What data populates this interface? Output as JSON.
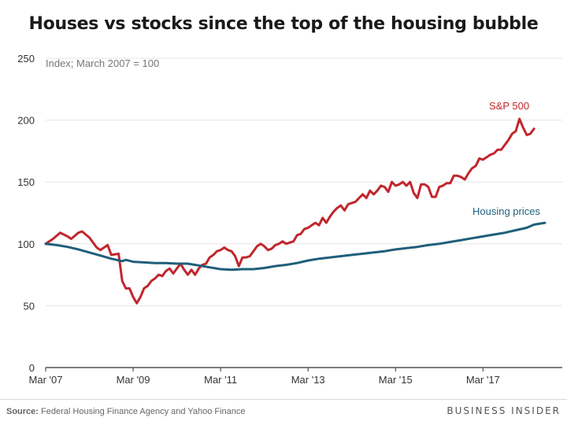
{
  "header": {
    "title": "Houses vs stocks since the top of the housing bubble"
  },
  "footer": {
    "source_label": "Source:",
    "source_text": "Federal Housing Finance Agency and Yahoo Finance",
    "brand": "BUSINESS INSIDER"
  },
  "colors": {
    "sp500": "#c0272d",
    "housing": "#1f5f7a",
    "grid": "#e6e6e6",
    "axis": "#333333"
  },
  "chart_data": {
    "type": "line",
    "subtitle": "Index; March 2007 = 100",
    "xlabel": "",
    "ylabel": "",
    "x_start": "2007-03",
    "x_end": "2018-08",
    "xticks": [
      {
        "date": "2007-03",
        "label": "Mar '07"
      },
      {
        "date": "2009-03",
        "label": "Mar '09"
      },
      {
        "date": "2011-03",
        "label": "Mar '11"
      },
      {
        "date": "2013-03",
        "label": "Mar '13"
      },
      {
        "date": "2015-03",
        "label": "Mar '15"
      },
      {
        "date": "2017-03",
        "label": "Mar '17"
      }
    ],
    "ylim": [
      0,
      250
    ],
    "yticks": [
      0,
      50,
      100,
      150,
      200,
      250
    ],
    "grid": true,
    "series": [
      {
        "name": "S&P 500",
        "color": "#c0272d",
        "points": [
          [
            "2007-03",
            100
          ],
          [
            "2007-05",
            104
          ],
          [
            "2007-07",
            109
          ],
          [
            "2007-09",
            106
          ],
          [
            "2007-10",
            104
          ],
          [
            "2007-12",
            109
          ],
          [
            "2008-01",
            110
          ],
          [
            "2008-03",
            105
          ],
          [
            "2008-05",
            97
          ],
          [
            "2008-06",
            95
          ],
          [
            "2008-08",
            99
          ],
          [
            "2008-09",
            91
          ],
          [
            "2008-11",
            92
          ],
          [
            "2008-12",
            70
          ],
          [
            "2009-01",
            64
          ],
          [
            "2009-02",
            64
          ],
          [
            "2009-03",
            57
          ],
          [
            "2009-04",
            52
          ],
          [
            "2009-05",
            57
          ],
          [
            "2009-06",
            64
          ],
          [
            "2009-07",
            66
          ],
          [
            "2009-08",
            70
          ],
          [
            "2009-09",
            72
          ],
          [
            "2009-10",
            75
          ],
          [
            "2009-11",
            74
          ],
          [
            "2009-12",
            78
          ],
          [
            "2010-01",
            80
          ],
          [
            "2010-02",
            76
          ],
          [
            "2010-03",
            80
          ],
          [
            "2010-04",
            84
          ],
          [
            "2010-05",
            79
          ],
          [
            "2010-06",
            75
          ],
          [
            "2010-07",
            79
          ],
          [
            "2010-08",
            75
          ],
          [
            "2010-09",
            80
          ],
          [
            "2010-10",
            83
          ],
          [
            "2010-11",
            84
          ],
          [
            "2010-12",
            89
          ],
          [
            "2011-01",
            91
          ],
          [
            "2011-02",
            94
          ],
          [
            "2011-03",
            95
          ],
          [
            "2011-04",
            97
          ],
          [
            "2011-05",
            95
          ],
          [
            "2011-06",
            94
          ],
          [
            "2011-07",
            90
          ],
          [
            "2011-08",
            82
          ],
          [
            "2011-09",
            89
          ],
          [
            "2011-10",
            89
          ],
          [
            "2011-11",
            90
          ],
          [
            "2011-12",
            94
          ],
          [
            "2012-01",
            98
          ],
          [
            "2012-02",
            100
          ],
          [
            "2012-03",
            98
          ],
          [
            "2012-04",
            95
          ],
          [
            "2012-05",
            96
          ],
          [
            "2012-06",
            99
          ],
          [
            "2012-07",
            100
          ],
          [
            "2012-08",
            102
          ],
          [
            "2012-09",
            100
          ],
          [
            "2012-10",
            101
          ],
          [
            "2012-11",
            102
          ],
          [
            "2012-12",
            107
          ],
          [
            "2013-01",
            108
          ],
          [
            "2013-02",
            112
          ],
          [
            "2013-03",
            113
          ],
          [
            "2013-04",
            115
          ],
          [
            "2013-05",
            117
          ],
          [
            "2013-06",
            115
          ],
          [
            "2013-07",
            121
          ],
          [
            "2013-08",
            117
          ],
          [
            "2013-09",
            122
          ],
          [
            "2013-10",
            126
          ],
          [
            "2013-11",
            129
          ],
          [
            "2013-12",
            131
          ],
          [
            "2014-01",
            127
          ],
          [
            "2014-02",
            132
          ],
          [
            "2014-03",
            133
          ],
          [
            "2014-04",
            134
          ],
          [
            "2014-05",
            137
          ],
          [
            "2014-06",
            140
          ],
          [
            "2014-07",
            137
          ],
          [
            "2014-08",
            143
          ],
          [
            "2014-09",
            140
          ],
          [
            "2014-10",
            143
          ],
          [
            "2014-11",
            147
          ],
          [
            "2014-12",
            146
          ],
          [
            "2015-01",
            142
          ],
          [
            "2015-02",
            150
          ],
          [
            "2015-03",
            147
          ],
          [
            "2015-04",
            148
          ],
          [
            "2015-05",
            150
          ],
          [
            "2015-06",
            147
          ],
          [
            "2015-07",
            150
          ],
          [
            "2015-08",
            141
          ],
          [
            "2015-09",
            137
          ],
          [
            "2015-10",
            148
          ],
          [
            "2015-11",
            148
          ],
          [
            "2015-12",
            146
          ],
          [
            "2016-01",
            138
          ],
          [
            "2016-02",
            138
          ],
          [
            "2016-03",
            146
          ],
          [
            "2016-04",
            147
          ],
          [
            "2016-05",
            149
          ],
          [
            "2016-06",
            149
          ],
          [
            "2016-07",
            155
          ],
          [
            "2016-08",
            155
          ],
          [
            "2016-09",
            154
          ],
          [
            "2016-10",
            152
          ],
          [
            "2016-11",
            157
          ],
          [
            "2016-12",
            161
          ],
          [
            "2017-01",
            163
          ],
          [
            "2017-02",
            169
          ],
          [
            "2017-03",
            168
          ],
          [
            "2017-04",
            170
          ],
          [
            "2017-05",
            172
          ],
          [
            "2017-06",
            173
          ],
          [
            "2017-07",
            176
          ],
          [
            "2017-08",
            176
          ],
          [
            "2017-09",
            180
          ],
          [
            "2017-10",
            184
          ],
          [
            "2017-11",
            189
          ],
          [
            "2017-12",
            191
          ],
          [
            "2018-01",
            201
          ],
          [
            "2018-02",
            194
          ],
          [
            "2018-03",
            188
          ],
          [
            "2018-04",
            189
          ],
          [
            "2018-05",
            193
          ]
        ]
      },
      {
        "name": "Housing prices",
        "color": "#1f5f7a",
        "points": [
          [
            "2007-03",
            100
          ],
          [
            "2007-06",
            99
          ],
          [
            "2007-09",
            97.5
          ],
          [
            "2007-12",
            95.5
          ],
          [
            "2008-03",
            93
          ],
          [
            "2008-06",
            90.5
          ],
          [
            "2008-09",
            88
          ],
          [
            "2008-12",
            86
          ],
          [
            "2009-01",
            87
          ],
          [
            "2009-03",
            85.5
          ],
          [
            "2009-06",
            85
          ],
          [
            "2009-09",
            84.5
          ],
          [
            "2009-12",
            84.5
          ],
          [
            "2010-03",
            84
          ],
          [
            "2010-06",
            84
          ],
          [
            "2010-09",
            82.5
          ],
          [
            "2010-12",
            81
          ],
          [
            "2011-03",
            79.5
          ],
          [
            "2011-06",
            79
          ],
          [
            "2011-09",
            79.5
          ],
          [
            "2011-12",
            79.5
          ],
          [
            "2012-03",
            80.5
          ],
          [
            "2012-06",
            82
          ],
          [
            "2012-09",
            83
          ],
          [
            "2012-12",
            84.5
          ],
          [
            "2013-03",
            86.5
          ],
          [
            "2013-06",
            88
          ],
          [
            "2013-09",
            89
          ],
          [
            "2013-12",
            90
          ],
          [
            "2014-03",
            91
          ],
          [
            "2014-06",
            92
          ],
          [
            "2014-09",
            93
          ],
          [
            "2014-12",
            94
          ],
          [
            "2015-03",
            95.5
          ],
          [
            "2015-06",
            96.5
          ],
          [
            "2015-09",
            97.5
          ],
          [
            "2015-12",
            99
          ],
          [
            "2016-03",
            100
          ],
          [
            "2016-06",
            101.5
          ],
          [
            "2016-09",
            103
          ],
          [
            "2016-12",
            104.5
          ],
          [
            "2017-03",
            106
          ],
          [
            "2017-06",
            107.5
          ],
          [
            "2017-09",
            109
          ],
          [
            "2017-12",
            111
          ],
          [
            "2018-03",
            113
          ],
          [
            "2018-05",
            115.5
          ],
          [
            "2018-08",
            117
          ]
        ]
      }
    ]
  }
}
